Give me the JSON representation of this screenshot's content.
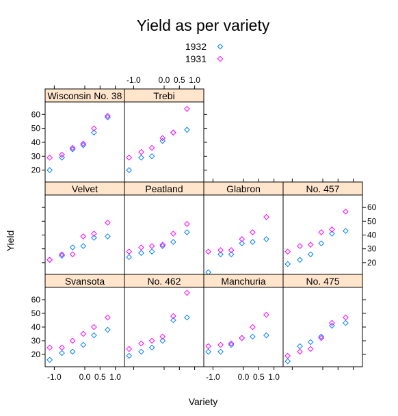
{
  "chart_data": {
    "type": "scatter",
    "layout": "trellis",
    "title": "Yield as per variety",
    "xlabel": "Variety",
    "ylabel": "Yield",
    "xlim": [
      -1.3,
      1.3
    ],
    "ylim": [
      11,
      69
    ],
    "x_tick_labels": [
      "-1.0",
      "0.0",
      "0.5",
      "1.0"
    ],
    "x_tick_values": [
      -1.0,
      0.0,
      0.5,
      1.0
    ],
    "y_tick_labels": [
      "20",
      "30",
      "40",
      "50",
      "60"
    ],
    "y_tick_values": [
      20,
      30,
      40,
      50,
      60
    ],
    "x": [
      -1.15,
      -0.75,
      -0.4,
      -0.05,
      0.3,
      0.75
    ],
    "legend": {
      "position": "top",
      "items": [
        {
          "label": "1932",
          "color": "#0080ff"
        },
        {
          "label": "1931",
          "color": "#ff00ff"
        }
      ]
    },
    "panels": [
      {
        "name": "Wisconsin No. 38",
        "y1932": [
          20,
          29,
          35,
          38,
          47,
          58
        ],
        "y1931": [
          29,
          31,
          36,
          39,
          50,
          59
        ]
      },
      {
        "name": "Trebi",
        "y1932": [
          20,
          29,
          30,
          41,
          47,
          49
        ],
        "y1931": [
          29,
          33,
          36,
          43,
          47,
          64
        ]
      },
      {
        "name": "Velvet",
        "y1932": [
          22,
          25,
          31,
          32,
          38,
          39
        ],
        "y1931": [
          22,
          26,
          26,
          39,
          41,
          49
        ]
      },
      {
        "name": "Peatland",
        "y1932": [
          24,
          27,
          28,
          32,
          35,
          42
        ],
        "y1931": [
          28,
          31,
          32,
          33,
          41,
          48
        ]
      },
      {
        "name": "Glabron",
        "y1932": [
          13,
          26,
          26,
          34,
          35,
          37
        ],
        "y1931": [
          28,
          29,
          29,
          37,
          42,
          53
        ]
      },
      {
        "name": "No. 457",
        "y1932": [
          19,
          22,
          26,
          34,
          41,
          43
        ],
        "y1931": [
          28,
          32,
          33,
          42,
          44,
          57
        ]
      },
      {
        "name": "Svansota",
        "y1932": [
          16,
          21,
          22,
          27,
          34,
          38
        ],
        "y1931": [
          25,
          25,
          30,
          35,
          40,
          47
        ]
      },
      {
        "name": "No. 462",
        "y1932": [
          19,
          22,
          25,
          30,
          45,
          47
        ],
        "y1931": [
          24,
          28,
          30,
          33,
          48,
          65
        ]
      },
      {
        "name": "Manchuria",
        "y1932": [
          22,
          22,
          27,
          32,
          33,
          34
        ],
        "y1931": [
          26,
          27,
          28,
          32,
          40,
          49
        ]
      },
      {
        "name": "No. 475",
        "y1932": [
          15,
          26,
          29,
          33,
          41,
          43
        ],
        "y1931": [
          19,
          22,
          24,
          32,
          43,
          47
        ]
      }
    ]
  }
}
